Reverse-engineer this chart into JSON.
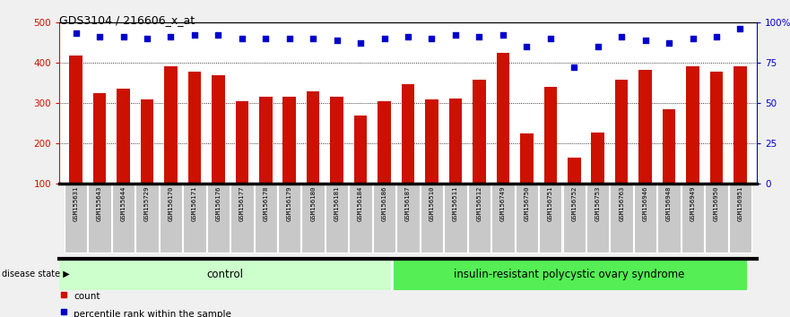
{
  "title": "GDS3104 / 216606_x_at",
  "samples": [
    "GSM155631",
    "GSM155643",
    "GSM155644",
    "GSM155729",
    "GSM156170",
    "GSM156171",
    "GSM156176",
    "GSM156177",
    "GSM156178",
    "GSM156179",
    "GSM156180",
    "GSM156181",
    "GSM156184",
    "GSM156186",
    "GSM156187",
    "GSM156510",
    "GSM156511",
    "GSM156512",
    "GSM156749",
    "GSM156750",
    "GSM156751",
    "GSM156752",
    "GSM156753",
    "GSM156763",
    "GSM156946",
    "GSM156948",
    "GSM156949",
    "GSM156950",
    "GSM156951"
  ],
  "counts": [
    418,
    325,
    335,
    310,
    390,
    378,
    368,
    305,
    315,
    315,
    328,
    315,
    270,
    305,
    347,
    310,
    312,
    358,
    425,
    225,
    340,
    165,
    228,
    358,
    383,
    284,
    390,
    378,
    390
  ],
  "percentiles": [
    93,
    91,
    91,
    90,
    91,
    92,
    92,
    90,
    90,
    90,
    90,
    89,
    87,
    90,
    91,
    90,
    92,
    91,
    92,
    85,
    90,
    72,
    85,
    91,
    89,
    87,
    90,
    91,
    96
  ],
  "control_count": 14,
  "group1_label": "control",
  "group2_label": "insulin-resistant polycystic ovary syndrome",
  "disease_state_label": "disease state",
  "bar_color": "#cc1100",
  "dot_color": "#0000cc",
  "ylim_left": [
    100,
    500
  ],
  "ylim_right": [
    0,
    100
  ],
  "yticks_left": [
    100,
    200,
    300,
    400,
    500
  ],
  "yticks_right": [
    0,
    25,
    50,
    75,
    100
  ],
  "ytick_labels_right": [
    "0",
    "25",
    "50",
    "75",
    "100%"
  ],
  "grid_values": [
    200,
    300,
    400
  ],
  "bg_color": "#f0f0f0",
  "plot_bg": "#ffffff",
  "control_bg": "#ccffcc",
  "disease_bg": "#55ee55",
  "label_box_color": "#c8c8c8",
  "legend_count_label": "count",
  "legend_pct_label": "percentile rank within the sample"
}
